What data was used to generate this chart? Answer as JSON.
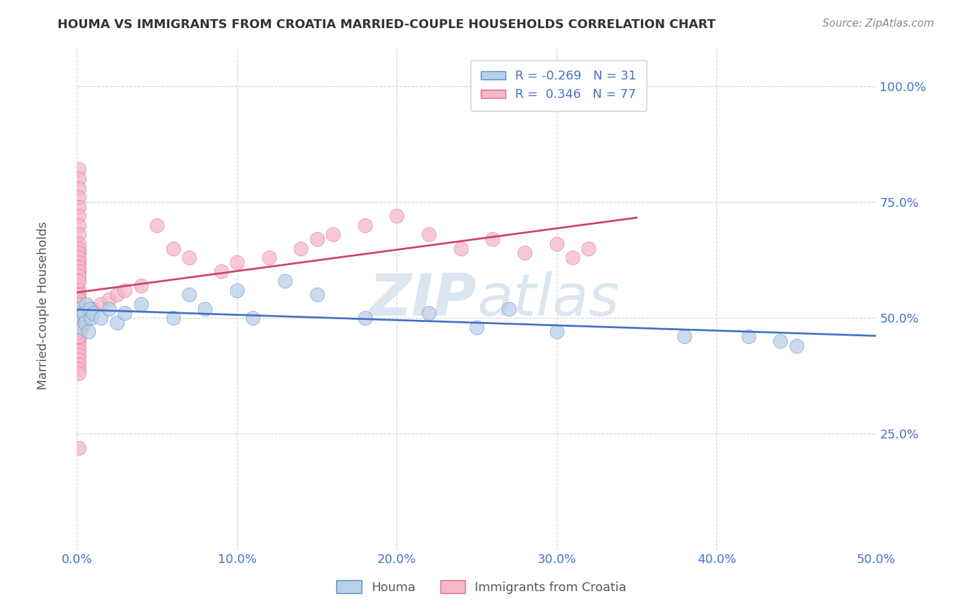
{
  "title": "HOUMA VS IMMIGRANTS FROM CROATIA MARRIED-COUPLE HOUSEHOLDS CORRELATION CHART",
  "source_text": "Source: ZipAtlas.com",
  "ylabel": "Married-couple Households",
  "legend_labels": [
    "Houma",
    "Immigrants from Croatia"
  ],
  "houma_R": -0.269,
  "houma_N": 31,
  "croatia_R": 0.346,
  "croatia_N": 77,
  "x_min": 0.0,
  "x_max": 0.5,
  "y_min": 0.0,
  "y_max": 1.08,
  "y_ticks": [
    0.25,
    0.5,
    0.75,
    1.0
  ],
  "y_tick_labels": [
    "25.0%",
    "50.0%",
    "75.0%",
    "100.0%"
  ],
  "x_ticks": [
    0.0,
    0.1,
    0.2,
    0.3,
    0.4,
    0.5
  ],
  "x_tick_labels": [
    "0.0%",
    "10.0%",
    "20.0%",
    "30.0%",
    "40.0%",
    "50.0%"
  ],
  "houma_color": "#b8d0e8",
  "croatia_color": "#f5b8c8",
  "houma_edge_color": "#5588cc",
  "croatia_edge_color": "#dd6688",
  "houma_line_color": "#4472c4",
  "croatia_line_color": "#cc4466",
  "watermark_color": "#dce6f0",
  "background_color": "#ffffff",
  "grid_color": "#cccccc",
  "houma_x": [
    0.001,
    0.002,
    0.003,
    0.004,
    0.005,
    0.006,
    0.007,
    0.008,
    0.009,
    0.01,
    0.015,
    0.02,
    0.025,
    0.03,
    0.04,
    0.06,
    0.07,
    0.08,
    0.1,
    0.11,
    0.13,
    0.15,
    0.18,
    0.22,
    0.25,
    0.27,
    0.3,
    0.38,
    0.42,
    0.44,
    0.45
  ],
  "houma_y": [
    0.5,
    0.52,
    0.48,
    0.51,
    0.49,
    0.53,
    0.47,
    0.52,
    0.5,
    0.51,
    0.5,
    0.52,
    0.49,
    0.51,
    0.53,
    0.5,
    0.55,
    0.52,
    0.56,
    0.5,
    0.58,
    0.55,
    0.5,
    0.51,
    0.48,
    0.52,
    0.47,
    0.46,
    0.46,
    0.45,
    0.44
  ],
  "croatia_x": [
    0.001,
    0.001,
    0.001,
    0.001,
    0.001,
    0.001,
    0.001,
    0.001,
    0.001,
    0.001,
    0.001,
    0.001,
    0.001,
    0.001,
    0.001,
    0.001,
    0.001,
    0.001,
    0.001,
    0.001,
    0.001,
    0.001,
    0.001,
    0.001,
    0.001,
    0.001,
    0.001,
    0.001,
    0.001,
    0.001,
    0.001,
    0.001,
    0.001,
    0.001,
    0.001,
    0.001,
    0.001,
    0.001,
    0.001,
    0.001,
    0.001,
    0.001,
    0.001,
    0.001,
    0.001,
    0.001,
    0.001,
    0.001,
    0.001,
    0.001,
    0.005,
    0.007,
    0.009,
    0.01,
    0.015,
    0.02,
    0.025,
    0.03,
    0.04,
    0.05,
    0.06,
    0.07,
    0.09,
    0.1,
    0.12,
    0.14,
    0.15,
    0.16,
    0.18,
    0.2,
    0.22,
    0.24,
    0.26,
    0.28,
    0.3,
    0.31,
    0.32
  ],
  "croatia_y": [
    0.82,
    0.8,
    0.78,
    0.76,
    0.74,
    0.72,
    0.7,
    0.68,
    0.66,
    0.64,
    0.62,
    0.6,
    0.58,
    0.56,
    0.54,
    0.52,
    0.51,
    0.5,
    0.49,
    0.48,
    0.47,
    0.46,
    0.45,
    0.44,
    0.43,
    0.42,
    0.41,
    0.4,
    0.39,
    0.38,
    0.56,
    0.55,
    0.54,
    0.53,
    0.52,
    0.51,
    0.5,
    0.49,
    0.48,
    0.47,
    0.46,
    0.65,
    0.64,
    0.63,
    0.62,
    0.61,
    0.6,
    0.59,
    0.58,
    0.22,
    0.5,
    0.51,
    0.52,
    0.52,
    0.53,
    0.54,
    0.55,
    0.56,
    0.57,
    0.7,
    0.65,
    0.63,
    0.6,
    0.62,
    0.63,
    0.65,
    0.67,
    0.68,
    0.7,
    0.72,
    0.68,
    0.65,
    0.67,
    0.64,
    0.66,
    0.63,
    0.65
  ]
}
